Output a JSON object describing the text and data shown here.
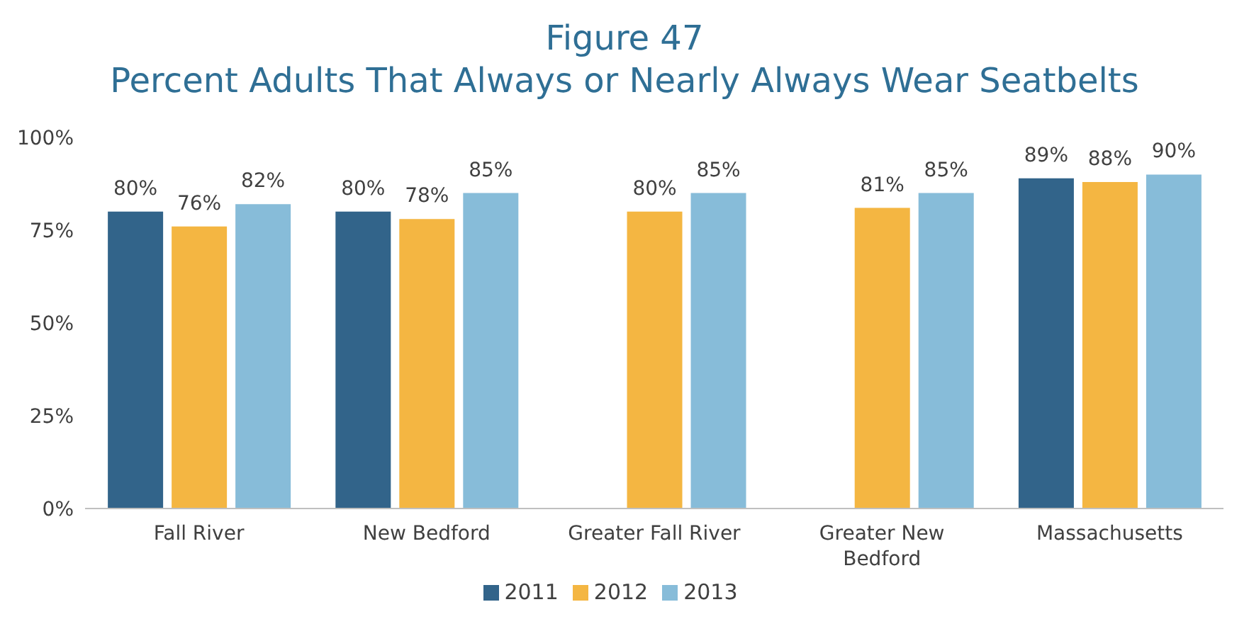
{
  "chart_data": {
    "type": "bar",
    "title": "Figure 47",
    "subtitle": "Percent Adults That Always or Nearly Always Wear Seatbelts",
    "categories": [
      "Fall River",
      "New Bedford",
      "Greater Fall River",
      "Greater New Bedford",
      "Massachusetts"
    ],
    "series": [
      {
        "name": "2011",
        "color": "#32648a",
        "values": [
          80,
          80,
          null,
          null,
          89
        ],
        "value_labels": [
          "80%",
          "80%",
          null,
          null,
          "89%"
        ]
      },
      {
        "name": "2012",
        "color": "#f4b642",
        "values": [
          76,
          78,
          80,
          81,
          88
        ],
        "value_labels": [
          "76%",
          "78%",
          "80%",
          "81%",
          "88%"
        ]
      },
      {
        "name": "2013",
        "color": "#87bcd9",
        "values": [
          82,
          85,
          85,
          85,
          90
        ],
        "value_labels": [
          "82%",
          "85%",
          "85%",
          "85%",
          "90%"
        ]
      }
    ],
    "ylim": [
      0,
      100
    ],
    "yticks": [
      {
        "value": 0,
        "label": "0%"
      },
      {
        "value": 25,
        "label": "25%"
      },
      {
        "value": 50,
        "label": "50%"
      },
      {
        "value": 75,
        "label": "75%"
      },
      {
        "value": 100,
        "label": "100%"
      }
    ],
    "grid": false,
    "legend": "bottom"
  }
}
